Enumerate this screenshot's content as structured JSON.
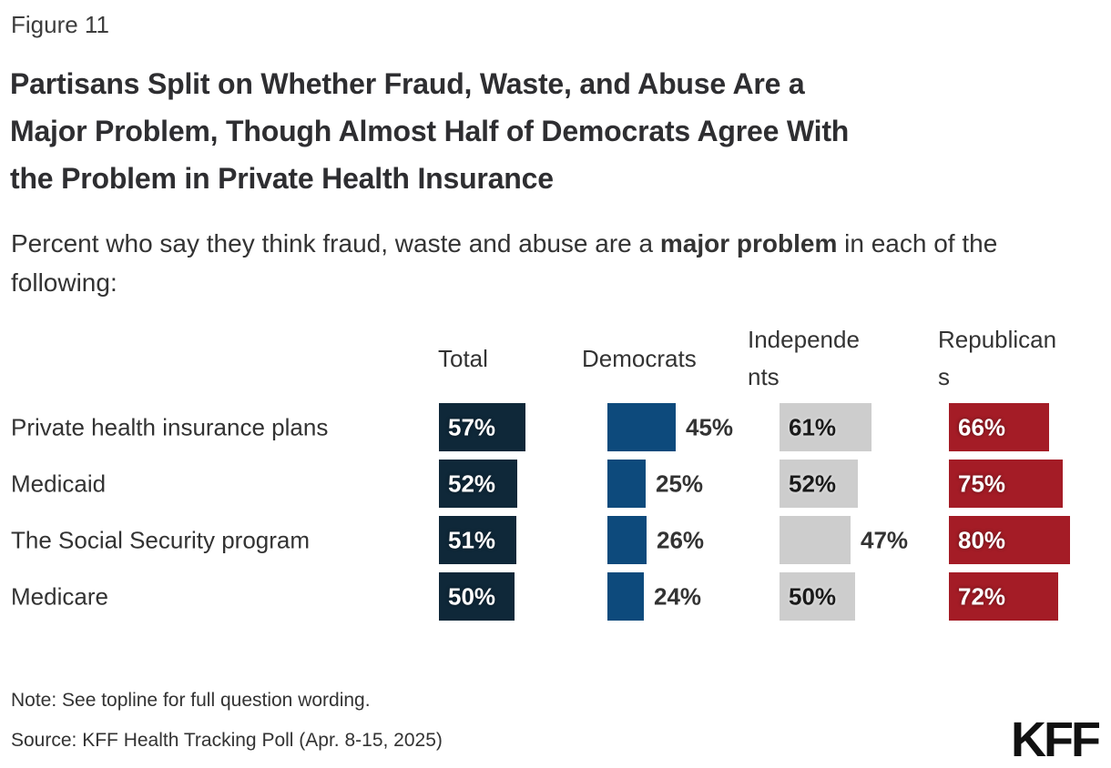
{
  "figure_label": "Figure 11",
  "title_lines": [
    "Partisans Split on Whether Fraud, Waste, and Abuse Are a",
    "Major Problem, Though Almost Half of Democrats Agree With",
    "the Problem in Private Health Insurance"
  ],
  "subtitle": {
    "before": "Percent who say they think fraud, waste and abuse are a ",
    "bold": "major problem",
    "after": " in each of the following:"
  },
  "chart_data": {
    "type": "bar",
    "orientation": "horizontal",
    "title": "Partisans Split on Whether Fraud, Waste, and Abuse Are a Major Problem, Though Almost Half of Democrats Agree With the Problem in Private Health Insurance",
    "categories": [
      "Private health insurance plans",
      "Medicaid",
      "The Social Security program",
      "Medicare"
    ],
    "series": [
      {
        "name": "Total",
        "color": "#0f2839",
        "inside_label_color": "#ffffff",
        "values": [
          57,
          52,
          51,
          50
        ]
      },
      {
        "name": "Democrats",
        "color": "#0d4a7c",
        "inside_label_color": "#ffffff",
        "values": [
          45,
          25,
          26,
          24
        ]
      },
      {
        "name": "Independents",
        "color": "#cdcdcd",
        "inside_label_color": "#1a1a1a",
        "values": [
          61,
          52,
          47,
          50
        ]
      },
      {
        "name": "Republicans",
        "color": "#a41c26",
        "inside_label_color": "#ffffff",
        "values": [
          66,
          75,
          80,
          72
        ]
      }
    ],
    "value_suffix": "%",
    "xlim": [
      0,
      100
    ],
    "grid": false,
    "legend_position": "column-headers",
    "label_rule": "values of 50 or more are shown inside the bar, smaller values outside to the right"
  },
  "note": "Note: See topline for full question wording.",
  "source": "Source: KFF Health Tracking Poll (Apr. 8-15, 2025)",
  "logo": "KFF"
}
